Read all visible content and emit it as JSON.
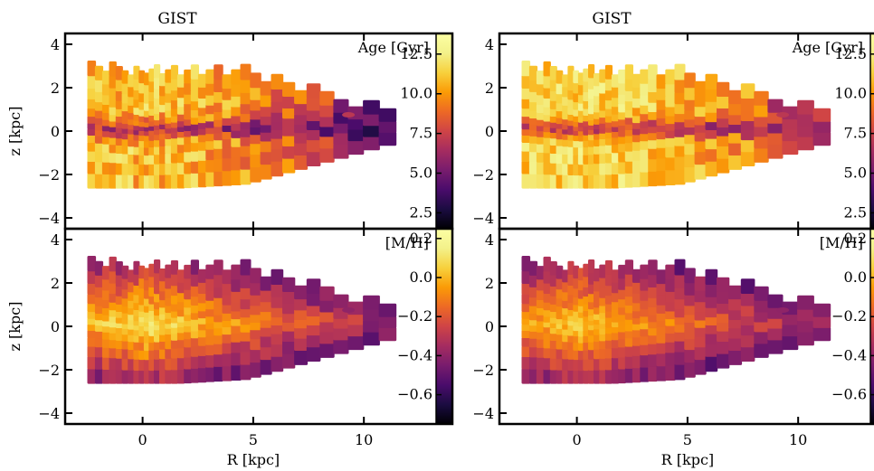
{
  "figure": {
    "column_titles": [
      "GIST",
      "GIST"
    ],
    "xlabel": "R [kpc]",
    "ylabel": "z [kpc]",
    "xticks": [
      0,
      5,
      10
    ],
    "yticks": [
      -4,
      -2,
      0,
      2,
      4
    ]
  },
  "chart_data": [
    {
      "type": "heatmap",
      "title": "GIST",
      "label": "Age [Gyr]",
      "xlim": [
        -3.5,
        14
      ],
      "ylim": [
        -4.5,
        4.5
      ],
      "xticks": [
        0,
        5,
        10
      ],
      "yticks": [
        -4,
        -2,
        0,
        2,
        4
      ],
      "colormap": "inferno",
      "vmin": 1.5,
      "vmax": 13.8,
      "colorbar_ticks": [
        "2.5",
        "5.0",
        "7.5",
        "10.0",
        "12.5"
      ],
      "map_model": {
        "outer_value": 10.8,
        "plane_value": 7.0,
        "radial_gradient": -0.45,
        "edge_value": 3.5,
        "scatter": 1.6
      },
      "annotations": [
        {
          "text": "Age [Gyr]",
          "position": "top-right"
        }
      ]
    },
    {
      "type": "heatmap",
      "title": "GIST",
      "label": "Age [Gyr]",
      "xlim": [
        -3.5,
        14
      ],
      "ylim": [
        -4.5,
        4.5
      ],
      "xticks": [
        0,
        5,
        10
      ],
      "yticks": [
        -4,
        -2,
        0,
        2,
        4
      ],
      "colormap": "inferno",
      "vmin": 1.5,
      "vmax": 13.8,
      "colorbar_ticks": [
        "2.5",
        "5.0",
        "7.5",
        "10.0",
        "12.5"
      ],
      "map_model": {
        "outer_value": 11.5,
        "plane_value": 7.5,
        "radial_gradient": -0.3,
        "edge_value": 6.5,
        "scatter": 1.4
      },
      "annotations": [
        {
          "text": "Age [Gyr]",
          "position": "top-right"
        }
      ]
    },
    {
      "type": "heatmap",
      "title": "",
      "label": "[M/H]",
      "xlim": [
        -3.5,
        14
      ],
      "ylim": [
        -4.5,
        4.5
      ],
      "xticks": [
        0,
        5,
        10
      ],
      "yticks": [
        -4,
        -2,
        0,
        2,
        4
      ],
      "colormap": "inferno",
      "vmin": -0.75,
      "vmax": 0.25,
      "colorbar_ticks": [
        "-0.6",
        "-0.4",
        "-0.2",
        "0.0",
        "0.2"
      ],
      "map_model": {
        "center_value": 0.12,
        "radial_gradient": -0.045,
        "vertical_gradient": -0.16,
        "floor": -0.72,
        "scatter": 0.08
      },
      "annotations": [
        {
          "text": "[M/H]",
          "position": "top-right"
        }
      ]
    },
    {
      "type": "heatmap",
      "title": "",
      "label": "[M/H]",
      "xlim": [
        -3.5,
        14
      ],
      "ylim": [
        -4.5,
        4.5
      ],
      "xticks": [
        0,
        5,
        10
      ],
      "yticks": [
        -4,
        -2,
        0,
        2,
        4
      ],
      "colormap": "inferno",
      "vmin": -0.75,
      "vmax": 0.25,
      "colorbar_ticks": [
        "-0.6",
        "-0.4",
        "-0.2",
        "0.0",
        "0.2"
      ],
      "map_model": {
        "center_value": 0.05,
        "radial_gradient": -0.04,
        "vertical_gradient": -0.14,
        "floor": -0.7,
        "scatter": 0.07
      },
      "annotations": [
        {
          "text": "[M/H]",
          "position": "top-right"
        }
      ]
    }
  ]
}
